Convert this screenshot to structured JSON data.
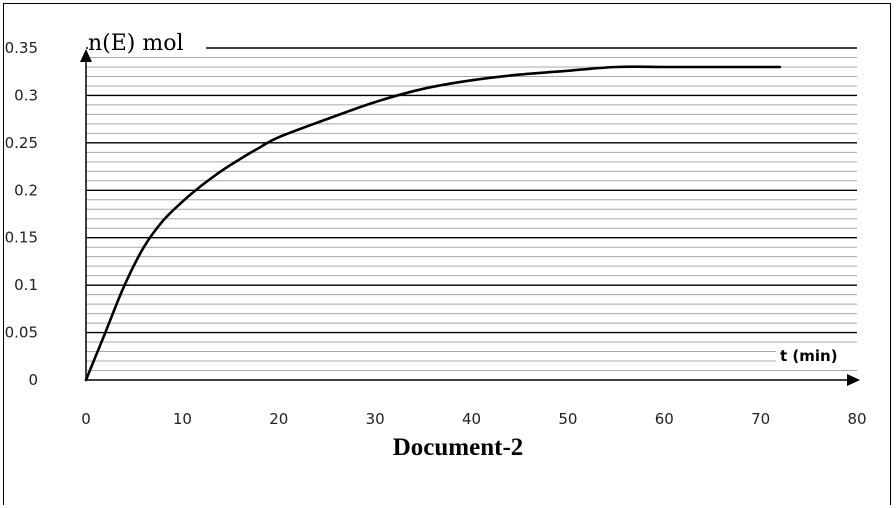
{
  "chart_data": {
    "type": "line",
    "title": "",
    "caption": "Document-2",
    "ylabel": "n(E) mol",
    "xlabel": "t (min)",
    "xlim": [
      0,
      80
    ],
    "ylim": [
      0,
      0.35
    ],
    "x_ticks": [
      "0",
      "10",
      "20",
      "30",
      "40",
      "50",
      "60",
      "70",
      "80"
    ],
    "y_ticks": [
      "0",
      "0.05",
      "0.1",
      "0.15",
      "0.2",
      "0.25",
      "0.3",
      "0.35"
    ],
    "grid": true,
    "series": [
      {
        "x": [
          0,
          2,
          4,
          6,
          8,
          10,
          12,
          14,
          16,
          18,
          20,
          25,
          30,
          35,
          40,
          45,
          50,
          55,
          60,
          65,
          70,
          72
        ],
        "y": [
          0,
          0.05,
          0.1,
          0.14,
          0.168,
          0.188,
          0.205,
          0.22,
          0.233,
          0.245,
          0.256,
          0.275,
          0.293,
          0.307,
          0.316,
          0.322,
          0.326,
          0.33,
          0.33,
          0.33,
          0.33,
          0.33
        ]
      }
    ]
  }
}
